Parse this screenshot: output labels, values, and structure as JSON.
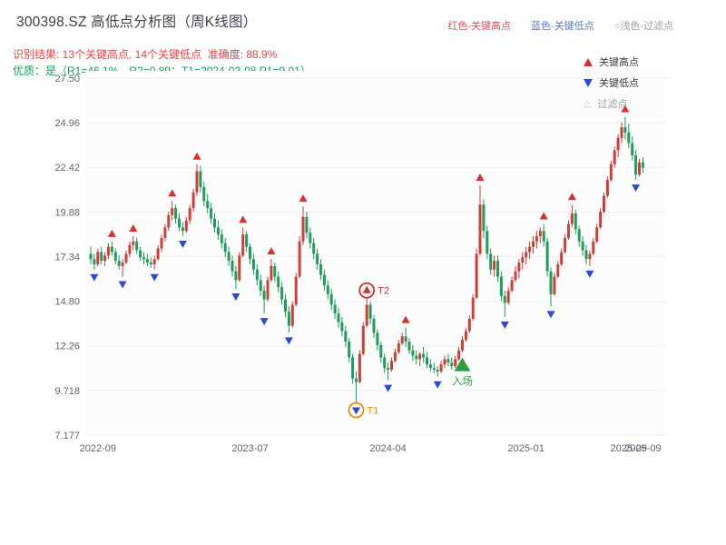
{
  "header": {
    "title": "300398.SZ 高低点分析图（周K线图）",
    "legend_top": [
      {
        "label": "红色-关键高点",
        "color": "#cf5659"
      },
      {
        "label": "蓝色-关键低点",
        "color": "#5b7cc4"
      },
      {
        "label": "○浅色-过滤点",
        "color": "#9aa0a6"
      }
    ],
    "result_line": "识别结果: 13个关键高点, 14个关键低点  准确度: 88.9%",
    "quality_line": "优质：是（R1=46.1%，R2=0.89；T1=2024-02-08 P1=9.01）"
  },
  "chart_legend": [
    {
      "label": "关键高点",
      "marker": "up-triangle",
      "color": "#d7312e"
    },
    {
      "label": "关键低点",
      "marker": "down-triangle",
      "color": "#2c4bd4"
    },
    {
      "label": "过滤点",
      "marker": "up-triangle-outline",
      "color": "#c8cdd4"
    }
  ],
  "chart_data": {
    "type": "candlestick",
    "title": "300398.SZ 高低点分析图（周K线图）",
    "period": "weekly",
    "ylim": [
      7.177,
      27.5
    ],
    "y_ticks": [
      "27.50",
      "24.96",
      "22.42",
      "19.88",
      "17.34",
      "14.80",
      "12.26",
      "9.718",
      "7.177"
    ],
    "y_tick_values": [
      27.5,
      24.96,
      22.42,
      19.88,
      17.34,
      14.8,
      12.26,
      9.718,
      7.177
    ],
    "x_ticks": [
      {
        "week": 2,
        "label": "2022-09"
      },
      {
        "week": 45,
        "label": "2023-07"
      },
      {
        "week": 84,
        "label": "2024-04"
      },
      {
        "week": 123,
        "label": "2025-01"
      },
      {
        "week": 152,
        "label": "2025-09"
      },
      {
        "week": 156,
        "label": "2025-09"
      }
    ],
    "up_color": "#cc4038",
    "down_color": "#1f9d5c",
    "high_marker_color": "#d7312e",
    "low_marker_color": "#2c4bd4",
    "candles": [
      [
        17.5,
        17.9,
        16.9,
        17.2
      ],
      [
        17.2,
        17.5,
        16.6,
        16.9
      ],
      [
        16.9,
        17.8,
        16.8,
        17.6
      ],
      [
        17.6,
        17.9,
        16.9,
        17.1
      ],
      [
        17.1,
        17.6,
        16.8,
        17.4
      ],
      [
        17.4,
        18.1,
        17.2,
        17.9
      ],
      [
        17.9,
        18.2,
        17.4,
        17.6
      ],
      [
        17.6,
        17.8,
        16.9,
        17.1
      ],
      [
        17.1,
        17.4,
        16.6,
        16.8
      ],
      [
        16.8,
        17.2,
        16.2,
        17.0
      ],
      [
        17.0,
        17.7,
        16.9,
        17.5
      ],
      [
        17.5,
        18.2,
        17.3,
        18.0
      ],
      [
        18.0,
        18.5,
        17.7,
        18.2
      ],
      [
        18.2,
        18.4,
        17.5,
        17.7
      ],
      [
        17.7,
        17.9,
        17.1,
        17.3
      ],
      [
        17.3,
        17.6,
        16.9,
        17.2
      ],
      [
        17.2,
        17.5,
        16.8,
        17.0
      ],
      [
        17.0,
        17.3,
        16.7,
        16.9
      ],
      [
        16.9,
        17.4,
        16.6,
        17.2
      ],
      [
        17.2,
        18.0,
        17.1,
        17.8
      ],
      [
        17.8,
        18.6,
        17.6,
        18.4
      ],
      [
        18.4,
        19.2,
        18.2,
        19.0
      ],
      [
        19.0,
        19.9,
        18.8,
        19.7
      ],
      [
        19.7,
        20.5,
        19.4,
        20.1
      ],
      [
        20.1,
        20.3,
        19.2,
        19.5
      ],
      [
        19.5,
        19.8,
        18.8,
        19.0
      ],
      [
        19.0,
        19.3,
        18.5,
        18.8
      ],
      [
        18.8,
        19.6,
        18.7,
        19.4
      ],
      [
        19.4,
        20.3,
        19.2,
        20.1
      ],
      [
        20.1,
        21.2,
        19.9,
        21.0
      ],
      [
        21.0,
        22.6,
        20.8,
        22.2
      ],
      [
        22.2,
        22.5,
        21.0,
        21.3
      ],
      [
        21.3,
        21.6,
        20.2,
        20.5
      ],
      [
        20.5,
        20.9,
        19.8,
        20.1
      ],
      [
        20.1,
        20.4,
        19.2,
        19.5
      ],
      [
        19.5,
        19.8,
        18.7,
        19.0
      ],
      [
        19.0,
        19.4,
        18.3,
        18.6
      ],
      [
        18.6,
        18.9,
        17.8,
        18.1
      ],
      [
        18.1,
        18.4,
        17.3,
        17.6
      ],
      [
        17.6,
        17.9,
        16.8,
        17.1
      ],
      [
        17.1,
        17.4,
        16.2,
        16.5
      ],
      [
        16.5,
        16.8,
        15.5,
        16.0
      ],
      [
        16.0,
        17.6,
        15.9,
        17.4
      ],
      [
        17.4,
        19.0,
        17.3,
        18.6
      ],
      [
        18.6,
        18.8,
        17.6,
        17.9
      ],
      [
        17.9,
        18.1,
        16.9,
        17.2
      ],
      [
        17.2,
        17.5,
        16.3,
        16.6
      ],
      [
        16.6,
        16.9,
        15.7,
        16.0
      ],
      [
        16.0,
        16.3,
        15.1,
        15.4
      ],
      [
        15.4,
        15.7,
        14.1,
        14.9
      ],
      [
        14.9,
        16.2,
        14.8,
        16.0
      ],
      [
        16.0,
        17.2,
        15.9,
        16.8
      ],
      [
        16.8,
        17.0,
        15.9,
        16.2
      ],
      [
        16.2,
        16.5,
        15.3,
        15.6
      ],
      [
        15.6,
        15.9,
        14.6,
        14.9
      ],
      [
        14.9,
        15.2,
        13.9,
        14.2
      ],
      [
        14.2,
        14.5,
        13.0,
        13.4
      ],
      [
        13.4,
        14.8,
        13.3,
        14.6
      ],
      [
        14.6,
        16.4,
        14.5,
        16.2
      ],
      [
        16.2,
        18.5,
        16.1,
        18.2
      ],
      [
        18.2,
        20.2,
        18.0,
        19.6
      ],
      [
        19.6,
        19.9,
        18.4,
        18.7
      ],
      [
        18.7,
        19.0,
        17.8,
        18.1
      ],
      [
        18.1,
        18.4,
        17.2,
        17.5
      ],
      [
        17.5,
        17.8,
        16.6,
        16.9
      ],
      [
        16.9,
        17.2,
        16.0,
        16.3
      ],
      [
        16.3,
        16.6,
        15.4,
        15.7
      ],
      [
        15.7,
        16.0,
        14.9,
        15.2
      ],
      [
        15.2,
        15.5,
        14.3,
        14.6
      ],
      [
        14.6,
        14.9,
        13.8,
        14.1
      ],
      [
        14.1,
        14.4,
        13.3,
        13.6
      ],
      [
        13.6,
        13.9,
        12.8,
        13.1
      ],
      [
        13.1,
        13.4,
        12.2,
        12.5
      ],
      [
        12.5,
        12.7,
        11.3,
        11.6
      ],
      [
        11.6,
        11.8,
        10.1,
        10.4
      ],
      [
        10.4,
        10.8,
        9.01,
        10.2
      ],
      [
        10.2,
        12.0,
        10.1,
        11.8
      ],
      [
        11.8,
        13.6,
        11.7,
        13.4
      ],
      [
        13.4,
        15.0,
        13.3,
        14.6
      ],
      [
        14.6,
        14.8,
        13.5,
        13.8
      ],
      [
        13.8,
        14.0,
        12.7,
        13.0
      ],
      [
        13.0,
        13.2,
        12.0,
        12.3
      ],
      [
        12.3,
        12.5,
        11.3,
        11.6
      ],
      [
        11.6,
        11.8,
        10.7,
        11.0
      ],
      [
        11.0,
        11.3,
        10.3,
        10.9
      ],
      [
        10.9,
        11.6,
        10.8,
        11.4
      ],
      [
        11.4,
        12.1,
        11.3,
        11.9
      ],
      [
        11.9,
        12.6,
        11.8,
        12.4
      ],
      [
        12.4,
        13.0,
        12.3,
        12.8
      ],
      [
        12.8,
        13.3,
        12.2,
        12.5
      ],
      [
        12.5,
        12.7,
        11.8,
        12.0
      ],
      [
        12.0,
        12.3,
        11.4,
        11.7
      ],
      [
        11.7,
        12.0,
        11.2,
        11.5
      ],
      [
        11.5,
        11.9,
        11.1,
        11.8
      ],
      [
        11.8,
        12.2,
        11.3,
        11.6
      ],
      [
        11.6,
        11.9,
        11.0,
        11.2
      ],
      [
        11.2,
        11.5,
        10.8,
        11.0
      ],
      [
        11.0,
        11.3,
        10.7,
        10.9
      ],
      [
        10.9,
        11.1,
        10.5,
        10.8
      ],
      [
        10.8,
        11.4,
        10.7,
        11.2
      ],
      [
        11.2,
        11.7,
        11.0,
        11.5
      ],
      [
        11.5,
        11.8,
        11.1,
        11.3
      ],
      [
        11.3,
        11.6,
        10.9,
        11.1
      ],
      [
        11.1,
        11.7,
        11.0,
        11.5
      ],
      [
        11.5,
        12.2,
        11.4,
        12.0
      ],
      [
        12.0,
        12.8,
        11.9,
        12.6
      ],
      [
        12.6,
        13.3,
        12.5,
        13.1
      ],
      [
        13.1,
        14.0,
        13.0,
        13.8
      ],
      [
        13.8,
        15.2,
        13.7,
        15.0
      ],
      [
        15.0,
        17.8,
        14.9,
        17.5
      ],
      [
        17.5,
        21.4,
        17.4,
        20.3
      ],
      [
        20.3,
        20.6,
        18.4,
        18.8
      ],
      [
        18.8,
        19.1,
        17.2,
        17.5
      ],
      [
        17.5,
        17.8,
        16.3,
        16.6
      ],
      [
        16.6,
        17.4,
        16.2,
        17.1
      ],
      [
        17.1,
        17.4,
        15.9,
        16.2
      ],
      [
        16.2,
        16.5,
        14.8,
        15.1
      ],
      [
        15.1,
        15.4,
        13.9,
        14.7
      ],
      [
        14.7,
        15.6,
        14.6,
        15.4
      ],
      [
        15.4,
        16.2,
        15.3,
        16.0
      ],
      [
        16.0,
        16.8,
        15.9,
        16.5
      ],
      [
        16.5,
        17.2,
        16.1,
        17.0
      ],
      [
        17.0,
        17.6,
        16.6,
        17.3
      ],
      [
        17.3,
        17.9,
        16.9,
        17.6
      ],
      [
        17.6,
        18.2,
        17.2,
        17.9
      ],
      [
        17.9,
        18.5,
        17.5,
        18.2
      ],
      [
        18.2,
        18.8,
        17.8,
        18.5
      ],
      [
        18.5,
        19.0,
        18.1,
        18.8
      ],
      [
        18.8,
        19.2,
        17.9,
        18.2
      ],
      [
        18.2,
        18.4,
        16.2,
        16.5
      ],
      [
        16.5,
        16.7,
        14.5,
        15.2
      ],
      [
        15.2,
        16.4,
        15.1,
        16.2
      ],
      [
        16.2,
        17.1,
        16.1,
        16.9
      ],
      [
        16.9,
        17.8,
        16.8,
        17.6
      ],
      [
        17.6,
        18.6,
        17.5,
        18.4
      ],
      [
        18.4,
        19.4,
        18.3,
        19.2
      ],
      [
        19.2,
        20.3,
        19.0,
        19.8
      ],
      [
        19.8,
        20.0,
        18.6,
        18.9
      ],
      [
        18.9,
        19.1,
        17.9,
        18.2
      ],
      [
        18.2,
        18.5,
        17.4,
        17.7
      ],
      [
        17.7,
        18.0,
        16.9,
        17.2
      ],
      [
        17.2,
        17.7,
        16.8,
        17.5
      ],
      [
        17.5,
        18.4,
        17.4,
        18.2
      ],
      [
        18.2,
        19.2,
        18.1,
        19.0
      ],
      [
        19.0,
        20.1,
        18.9,
        19.9
      ],
      [
        19.9,
        21.0,
        19.8,
        20.8
      ],
      [
        20.8,
        21.9,
        20.7,
        21.7
      ],
      [
        21.7,
        22.8,
        21.6,
        22.6
      ],
      [
        22.6,
        23.6,
        22.4,
        23.4
      ],
      [
        23.4,
        24.3,
        23.0,
        24.1
      ],
      [
        24.1,
        25.0,
        23.8,
        24.7
      ],
      [
        24.7,
        25.3,
        24.0,
        24.4
      ],
      [
        24.4,
        24.9,
        23.5,
        23.8
      ],
      [
        23.8,
        24.2,
        22.8,
        23.1
      ],
      [
        23.1,
        23.4,
        21.7,
        22.0
      ],
      [
        22.0,
        22.9,
        21.9,
        22.7
      ],
      [
        22.7,
        23.0,
        22.1,
        22.4
      ]
    ],
    "key_highs": [
      6,
      12,
      23,
      30,
      43,
      51,
      60,
      78,
      89,
      110,
      128,
      136,
      151
    ],
    "key_lows": [
      1,
      9,
      18,
      26,
      41,
      49,
      56,
      75,
      84,
      98,
      117,
      130,
      141,
      154
    ],
    "annotations": [
      {
        "week": 75,
        "type": "circle-low",
        "label": "T1",
        "color": "#f08c00"
      },
      {
        "week": 78,
        "type": "circle-high",
        "label": "T2",
        "color": "#d7312e"
      },
      {
        "week": 105,
        "type": "entry",
        "label": "入场",
        "color": "#2f9e44"
      }
    ]
  }
}
